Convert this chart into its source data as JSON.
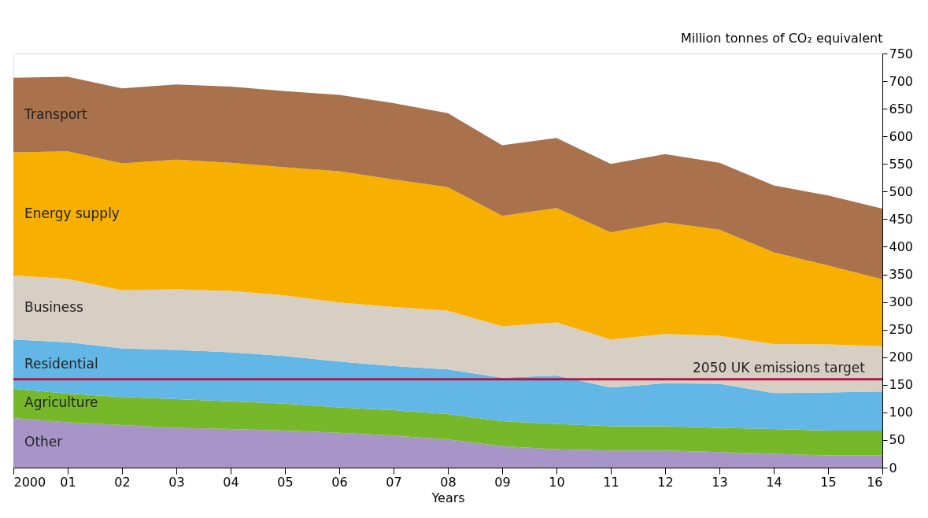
{
  "chart_data": {
    "type": "area",
    "stacked": true,
    "xlabel": "Years",
    "ylabel": "Million tonnes of CO₂ equivalent",
    "categories": [
      "2000",
      "01",
      "02",
      "03",
      "04",
      "05",
      "06",
      "07",
      "08",
      "09",
      "10",
      "11",
      "12",
      "13",
      "14",
      "15",
      "16"
    ],
    "series": [
      {
        "name": "Other",
        "color": "#a895c8",
        "values": [
          90,
          82,
          77,
          72,
          70,
          67,
          63,
          58,
          51,
          39,
          33,
          31,
          31,
          28,
          25,
          22,
          22
        ]
      },
      {
        "name": "Agriculture",
        "color": "#76b82a",
        "values": [
          53,
          52,
          51,
          52,
          50,
          49,
          46,
          46,
          46,
          45,
          46,
          44,
          44,
          44,
          45,
          45,
          45
        ]
      },
      {
        "name": "Residential",
        "color": "#63b7e6",
        "values": [
          89,
          93,
          88,
          89,
          89,
          86,
          83,
          80,
          81,
          79,
          88,
          70,
          78,
          80,
          65,
          69,
          71
        ]
      },
      {
        "name": "Business",
        "color": "#d8cfc4",
        "values": [
          116,
          115,
          105,
          110,
          111,
          110,
          107,
          107,
          106,
          93,
          96,
          87,
          89,
          87,
          89,
          87,
          82
        ]
      },
      {
        "name": "Energy supply",
        "color": "#f7b000",
        "values": [
          223,
          231,
          230,
          235,
          232,
          232,
          238,
          231,
          224,
          200,
          207,
          194,
          202,
          192,
          166,
          143,
          121
        ]
      },
      {
        "name": "Transport",
        "color": "#a9714c",
        "values": [
          135,
          135,
          136,
          136,
          138,
          138,
          138,
          138,
          134,
          128,
          127,
          124,
          124,
          121,
          121,
          127,
          128
        ]
      }
    ],
    "ylim": [
      0,
      750
    ],
    "yticks": [
      0,
      50,
      100,
      150,
      200,
      250,
      300,
      350,
      400,
      450,
      500,
      550,
      600,
      650,
      700,
      750
    ],
    "ref_lines": [
      {
        "axis": "y",
        "value": 160,
        "label": "2050 UK emissions target",
        "color": "#b0174a"
      }
    ],
    "grid": false,
    "legend": false
  }
}
